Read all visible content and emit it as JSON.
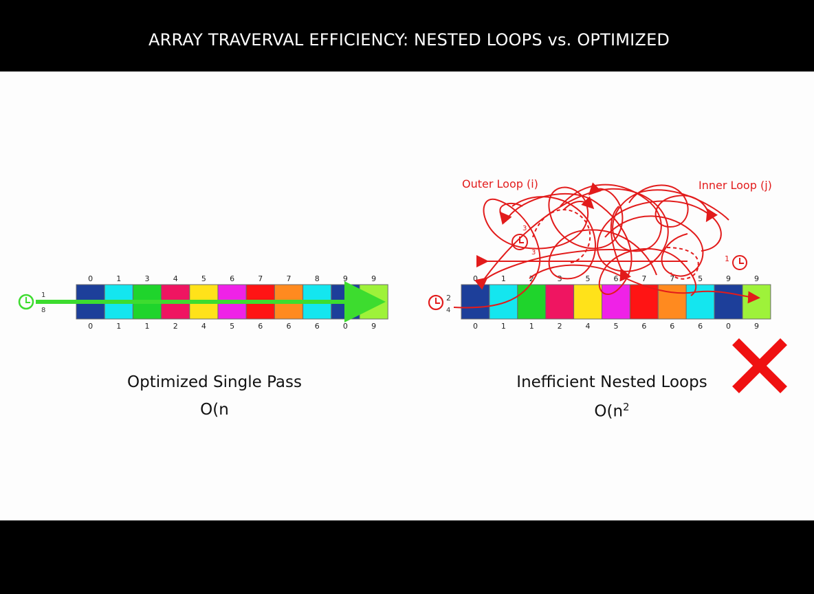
{
  "title": "ARRAY TRAVERVAL EFFICIENCY: NESTED LOOPS vs. OPTIMIZED",
  "colors": {
    "cells": [
      "#1d3f9a",
      "#14e6ef",
      "#1fd42c",
      "#ef1561",
      "#ffe21a",
      "#ef22e7",
      "#ff1414",
      "#ff8a1f",
      "#14e6ef",
      "#1d3f9a",
      "#9ef23a"
    ],
    "optimized_arrow": "#3ddc2f",
    "nested_loops": "#e21b1b"
  },
  "left_panel": {
    "caption": "Optimized Single Pass",
    "complexity": "O(n",
    "top_indices": [
      "0",
      "1",
      "3",
      "4",
      "5",
      "6",
      "7",
      "7",
      "8",
      "9",
      "9"
    ],
    "bottom_indices": [
      "0",
      "1",
      "1",
      "2",
      "4",
      "5",
      "6",
      "6",
      "6",
      "0",
      "9"
    ],
    "clock_top": "1",
    "clock_bottom": "8",
    "icon": "clock-icon"
  },
  "right_panel": {
    "caption": "Inefficient Nested Loops",
    "complexity": "O(n",
    "complexity_sup": "2",
    "outer_loop_label": "Outer Loop (i)",
    "inner_loop_label": "Inner Loop (j)",
    "top_indices": [
      "0",
      "1",
      "2",
      "3",
      "5",
      "6",
      "7",
      "7",
      "5",
      "9",
      "9"
    ],
    "bottom_indices": [
      "0",
      "1",
      "1",
      "2",
      "4",
      "5",
      "6",
      "6",
      "6",
      "0",
      "9"
    ],
    "clock_top": "2",
    "clock_bottom": "4",
    "inner_clock_top": "3",
    "inner_clock_bottom": "3",
    "right_marker": "1",
    "icon": "clock-icon",
    "status_icon": "x-mark-icon"
  }
}
